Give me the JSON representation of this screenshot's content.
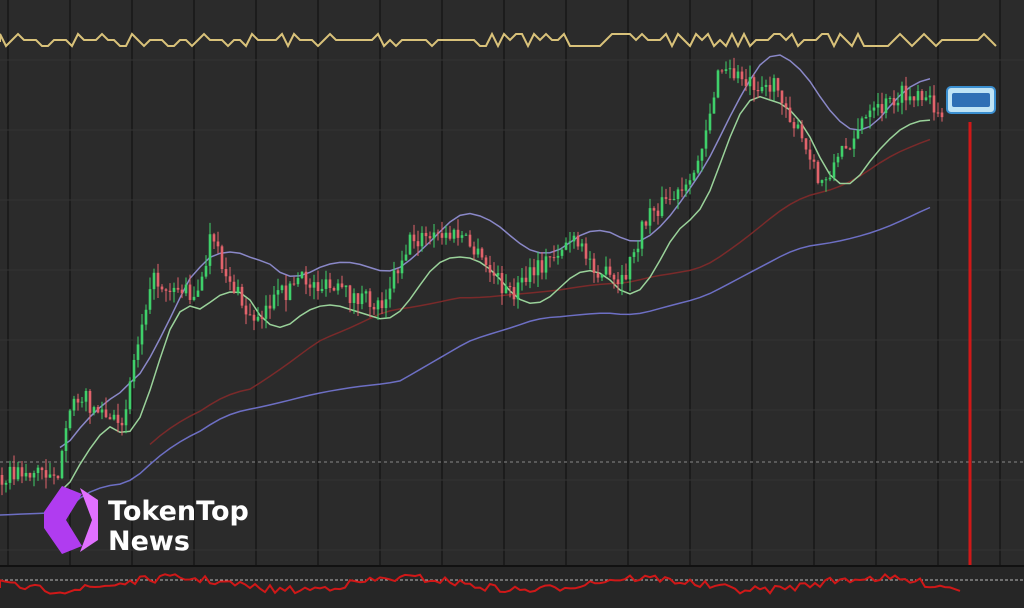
{
  "watermark": {
    "line1": "TokenTop",
    "line2": "News"
  }
}
